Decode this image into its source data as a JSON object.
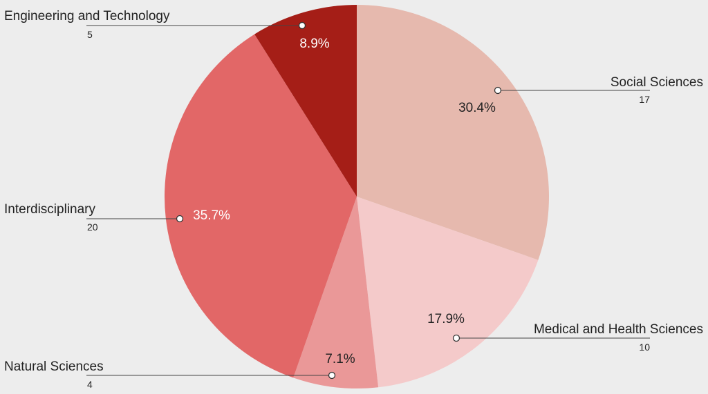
{
  "chart_data": {
    "type": "pie",
    "title": "",
    "slices": [
      {
        "label": "Social Sciences",
        "value": 17,
        "percent": "30.4%",
        "color": "#e6b9ae",
        "pct_color": "#222222"
      },
      {
        "label": "Medical and Health Sciences",
        "value": 10,
        "percent": "17.9%",
        "color": "#f4caca",
        "pct_color": "#222222"
      },
      {
        "label": "Natural Sciences",
        "value": 4,
        "percent": "7.1%",
        "color": "#ea9898",
        "pct_color": "#222222"
      },
      {
        "label": "Interdisciplinary",
        "value": 20,
        "percent": "35.7%",
        "color": "#e26767",
        "pct_color": "#ffffff"
      },
      {
        "label": "Engineering and Technology",
        "value": 5,
        "percent": "8.9%",
        "color": "#a51e17",
        "pct_color": "#ffffff"
      }
    ],
    "start_angle": "top",
    "direction": "clockwise"
  }
}
